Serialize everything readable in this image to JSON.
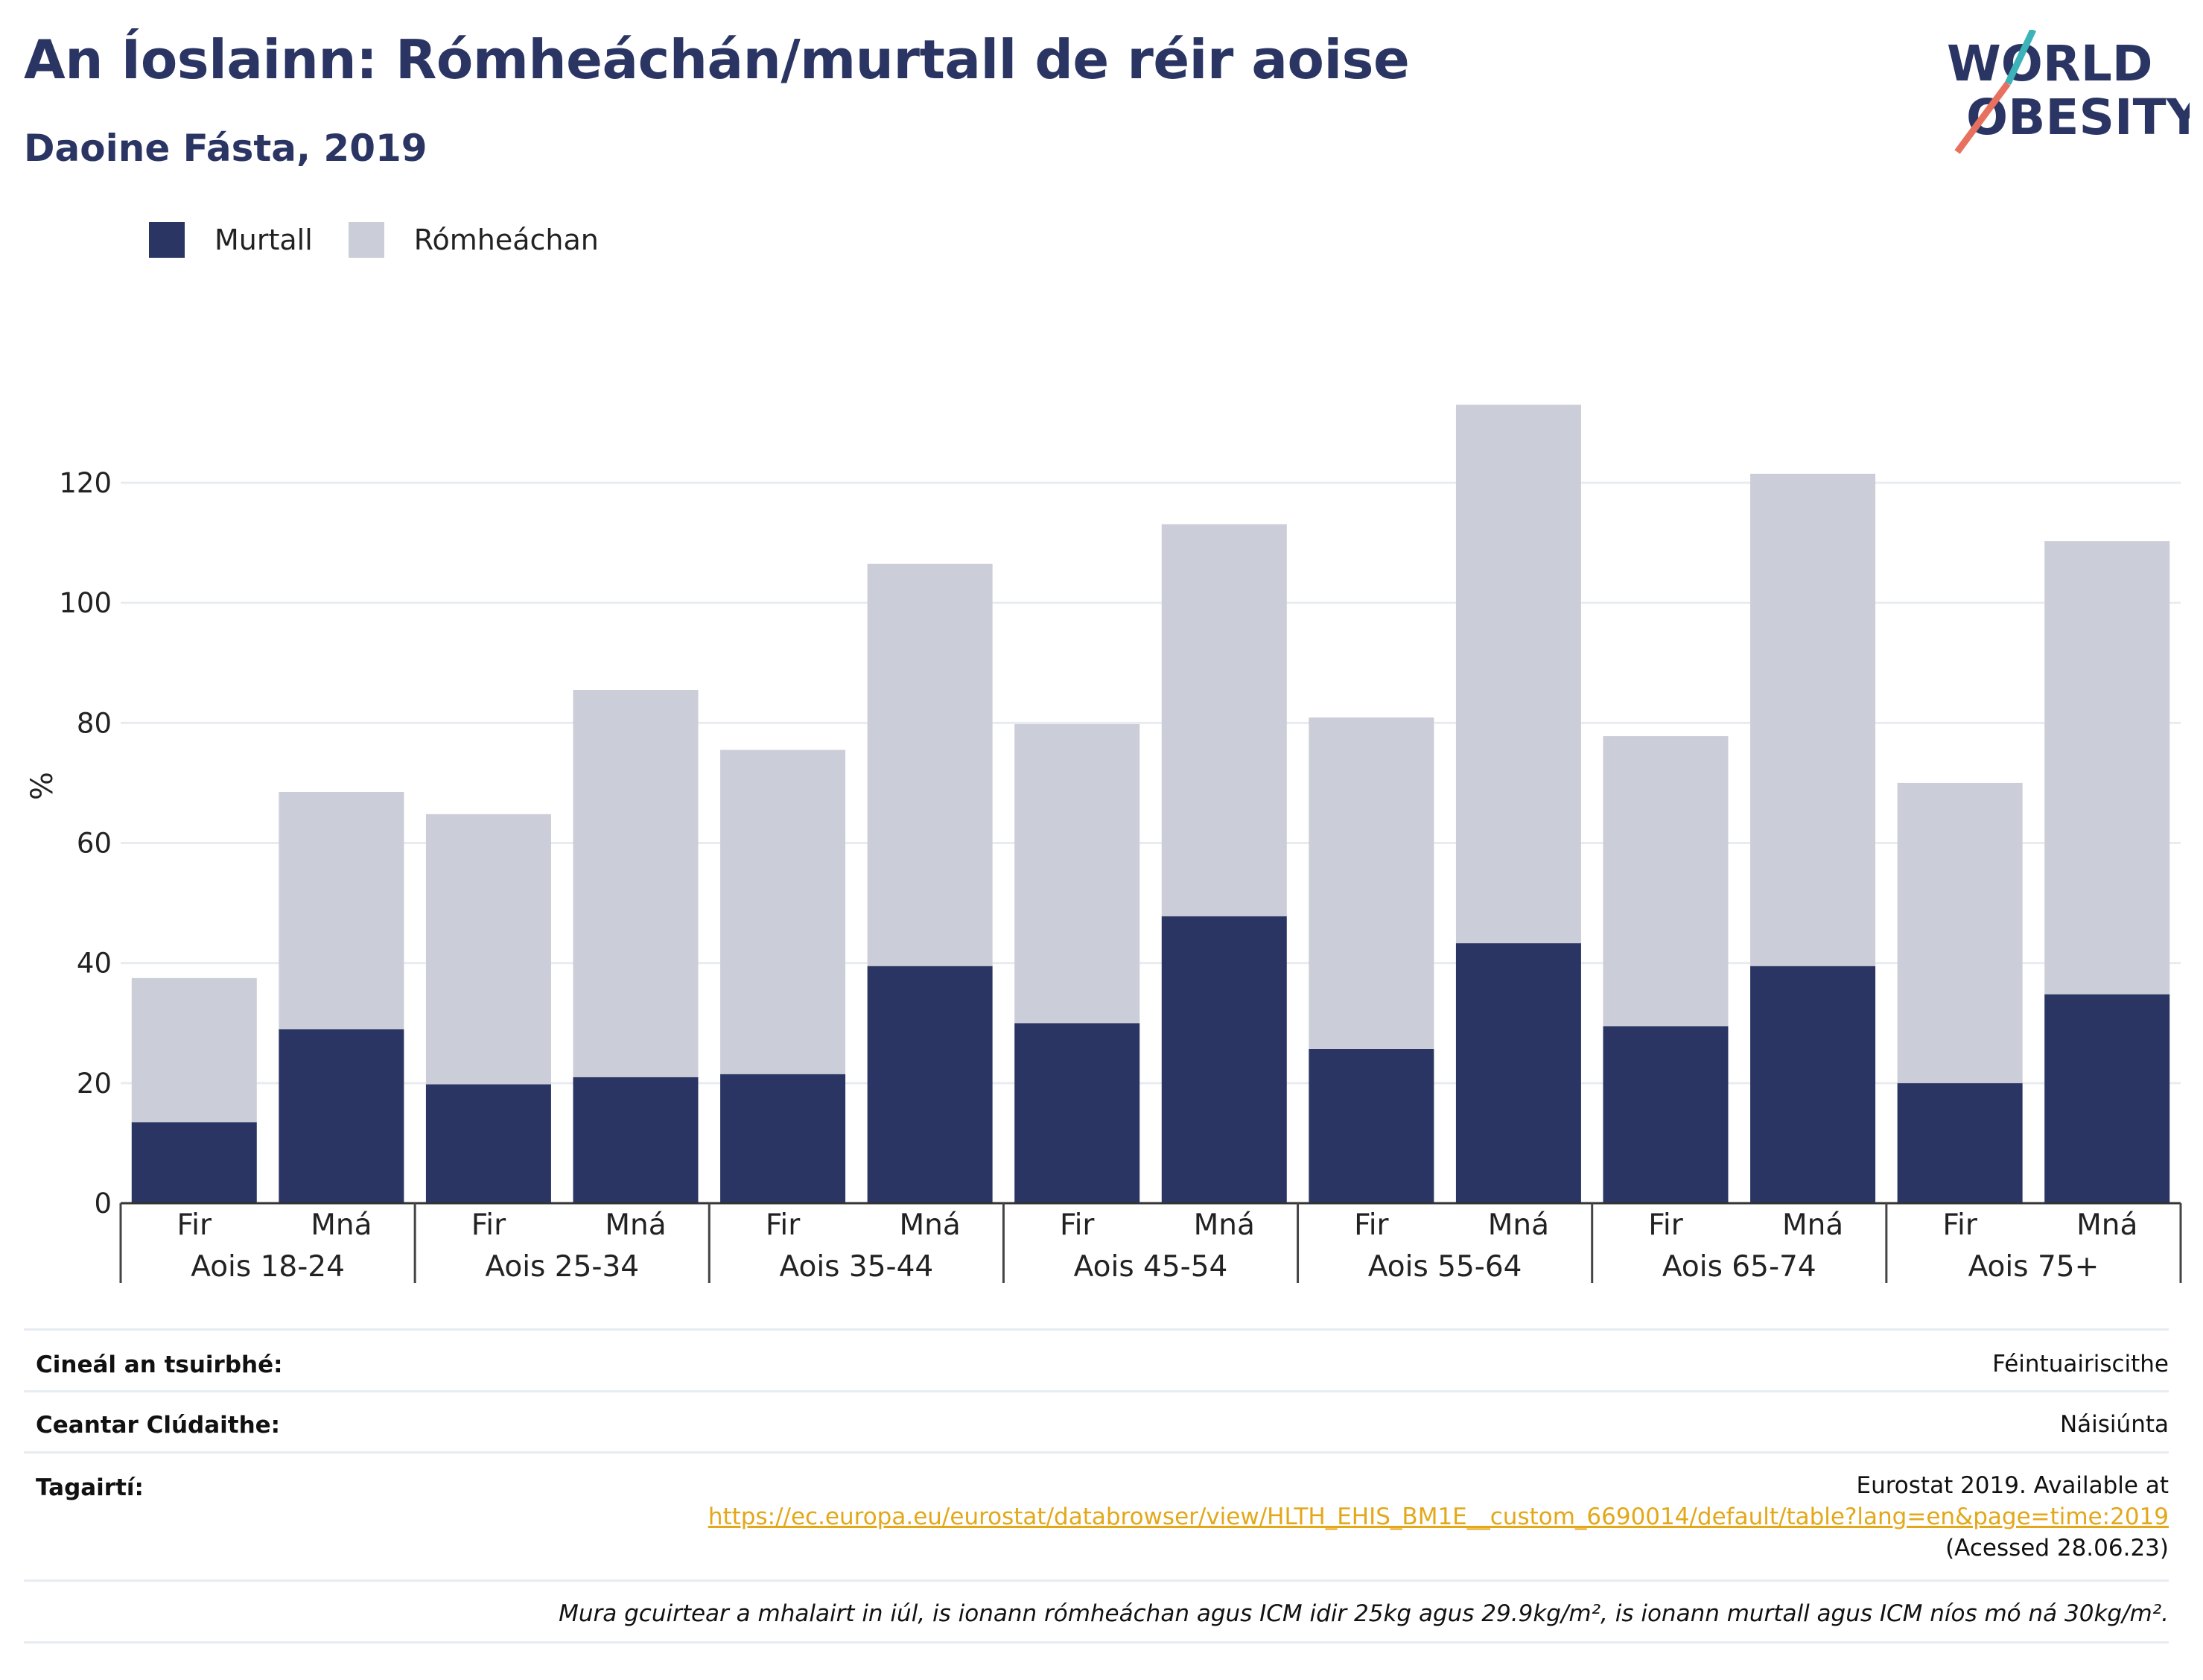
{
  "header": {
    "title": "An Íoslainn: Rómheáchán/murtall de réir aoise",
    "subtitle": "Daoine Fásta, 2019",
    "logo_line1": "WORLD",
    "logo_line2": "OBESITY"
  },
  "legend": [
    {
      "label": "Murtall",
      "color": "#2b3563"
    },
    {
      "label": "Rómheáchan",
      "color": "#cbcdd8"
    }
  ],
  "chart_data": {
    "type": "bar",
    "stacked": true,
    "ylabel": "%",
    "ylim": [
      0,
      140
    ],
    "yticks": [
      0,
      20,
      40,
      60,
      80,
      100,
      120
    ],
    "grid": true,
    "groups": [
      "Aois 18-24",
      "Aois 25-34",
      "Aois 35-44",
      "Aois 45-54",
      "Aois 55-64",
      "Aois 65-74",
      "Aois 75+"
    ],
    "sexes": [
      "Fir",
      "Mná"
    ],
    "series": [
      {
        "name": "Murtall",
        "color": "#2b3563",
        "values": [
          13.5,
          29.0,
          19.8,
          21.0,
          21.5,
          39.5,
          30.0,
          47.8,
          25.7,
          43.3,
          29.5,
          39.5,
          20.0,
          34.8
        ]
      },
      {
        "name": "Rómheáchan",
        "color": "#cbcdd8",
        "values": [
          24.0,
          39.5,
          45.0,
          64.5,
          54.0,
          67.0,
          49.8,
          65.3,
          55.2,
          89.7,
          48.3,
          82.0,
          50.0,
          75.5
        ]
      }
    ]
  },
  "info": {
    "survey_label": "Cineál an tsuirbhé:",
    "survey_value": "Féintuairiscithe",
    "area_label": "Ceantar Clúdaithe:",
    "area_value": "Náisiúnta",
    "refs_label": "Tagairtí:",
    "refs_line1": "Eurostat 2019. Available at",
    "refs_link": "https://ec.europa.eu/eurostat/databrowser/view/HLTH_EHIS_BM1E__custom_6690014/default/table?lang=en&page=time:2019",
    "refs_line3": "(Acessed 28.06.23)",
    "note": "Mura gcuirtear a mhalairt in iúl, is ionann rómheáchan agus ICM idir 25kg agus 29.9kg/m², is ionann murtall agus ICM níos mó ná 30kg/m²."
  }
}
